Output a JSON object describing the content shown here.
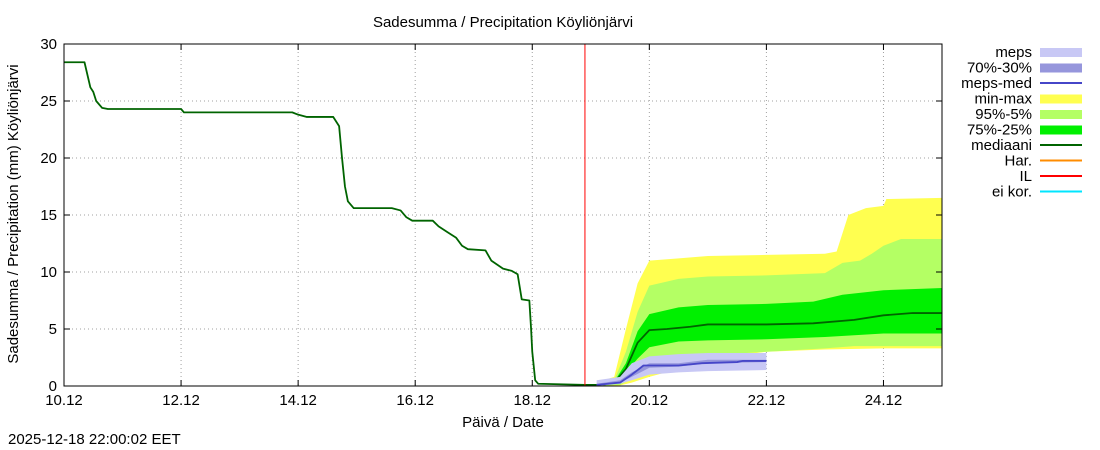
{
  "chart_data": {
    "type": "area",
    "title": "Sadesumma / Precipitation  Köyliönjärvi",
    "xlabel": "Päivä / Date",
    "ylabel": "Sadesumma / Precipitation (mm)  Köyliönjärvi",
    "x_unit": "days since 10.12 00:00",
    "xlim": [
      0,
      15
    ],
    "ylim": [
      0,
      30
    ],
    "x_ticks": [
      {
        "x": 0,
        "label": "10.12"
      },
      {
        "x": 2,
        "label": "12.12"
      },
      {
        "x": 4,
        "label": "14.12"
      },
      {
        "x": 6,
        "label": "16.12"
      },
      {
        "x": 8,
        "label": "18.12"
      },
      {
        "x": 10,
        "label": "20.12"
      },
      {
        "x": 12,
        "label": "22.12"
      },
      {
        "x": 14,
        "label": "24.12"
      }
    ],
    "y_ticks": [
      {
        "y": 0,
        "label": "0"
      },
      {
        "y": 5,
        "label": "5"
      },
      {
        "y": 10,
        "label": "10"
      },
      {
        "y": 15,
        "label": "15"
      },
      {
        "y": 20,
        "label": "20"
      },
      {
        "y": 25,
        "label": "25"
      },
      {
        "y": 30,
        "label": "30"
      }
    ],
    "grid": true,
    "legend_position": "right",
    "now_x": 8.9,
    "legend": [
      {
        "label": "meps",
        "color": "#c8c8f5",
        "kind": "band"
      },
      {
        "label": "70%-30%",
        "color": "#9696dc",
        "kind": "band"
      },
      {
        "label": "meps-med",
        "color": "#4646c8",
        "kind": "line"
      },
      {
        "label": "min-max",
        "color": "#ffff50",
        "kind": "band"
      },
      {
        "label": "95%-5%",
        "color": "#b4ff64",
        "kind": "band"
      },
      {
        "label": "75%-25%",
        "color": "#00f000",
        "kind": "band"
      },
      {
        "label": "mediaani",
        "color": "#006400",
        "kind": "line"
      },
      {
        "label": "Har.",
        "color": "#ff8c00",
        "kind": "line"
      },
      {
        "label": "IL",
        "color": "#ff0000",
        "kind": "line"
      },
      {
        "label": "ei kor.",
        "color": "#00e6ff",
        "kind": "line"
      }
    ],
    "series": [
      {
        "name": "mediaani (history)",
        "color": "#006400",
        "points": [
          [
            0,
            28.4
          ],
          [
            0.35,
            28.4
          ],
          [
            0.45,
            26.2
          ],
          [
            0.5,
            25.8
          ],
          [
            0.55,
            25
          ],
          [
            0.65,
            24.4
          ],
          [
            0.75,
            24.3
          ],
          [
            2.0,
            24.3
          ],
          [
            2.05,
            24.0
          ],
          [
            3.9,
            24.0
          ],
          [
            4.0,
            23.8
          ],
          [
            4.15,
            23.6
          ],
          [
            4.6,
            23.6
          ],
          [
            4.7,
            22.8
          ],
          [
            4.75,
            20
          ],
          [
            4.8,
            17.5
          ],
          [
            4.85,
            16.2
          ],
          [
            4.95,
            15.6
          ],
          [
            5.6,
            15.6
          ],
          [
            5.75,
            15.4
          ],
          [
            5.85,
            14.8
          ],
          [
            5.95,
            14.5
          ],
          [
            6.3,
            14.5
          ],
          [
            6.4,
            14.0
          ],
          [
            6.55,
            13.5
          ],
          [
            6.7,
            13.0
          ],
          [
            6.8,
            12.3
          ],
          [
            6.9,
            12.0
          ],
          [
            7.2,
            11.9
          ],
          [
            7.3,
            11.0
          ],
          [
            7.5,
            10.3
          ],
          [
            7.65,
            10.1
          ],
          [
            7.75,
            9.8
          ],
          [
            7.82,
            7.6
          ],
          [
            7.95,
            7.5
          ],
          [
            7.98,
            5
          ],
          [
            8.0,
            3.0
          ],
          [
            8.05,
            0.5
          ],
          [
            8.1,
            0.2
          ],
          [
            8.9,
            0.1
          ]
        ]
      },
      {
        "name": "min-max",
        "color": "#ffff50",
        "lower": [
          [
            9.1,
            0
          ],
          [
            9.5,
            0.05
          ],
          [
            9.7,
            0.3
          ],
          [
            10,
            0.8
          ],
          [
            10.5,
            1.5
          ],
          [
            11,
            2.2
          ],
          [
            11.5,
            2.7
          ],
          [
            12,
            3.0
          ],
          [
            13,
            3.2
          ],
          [
            14,
            3.3
          ],
          [
            15,
            3.3
          ]
        ],
        "upper": [
          [
            9.1,
            0.3
          ],
          [
            9.4,
            0.8
          ],
          [
            9.6,
            5.0
          ],
          [
            9.8,
            9.0
          ],
          [
            10,
            11.0
          ],
          [
            10.5,
            11.2
          ],
          [
            11,
            11.4
          ],
          [
            12,
            11.5
          ],
          [
            13,
            11.6
          ],
          [
            13.2,
            11.8
          ],
          [
            13.4,
            15.0
          ],
          [
            13.7,
            15.6
          ],
          [
            14.0,
            15.8
          ],
          [
            14.05,
            16.4
          ],
          [
            15,
            16.5
          ]
        ]
      },
      {
        "name": "95%-5%",
        "color": "#b4ff64",
        "lower": [
          [
            9.1,
            0
          ],
          [
            9.5,
            0.1
          ],
          [
            9.7,
            0.6
          ],
          [
            10,
            1.5
          ],
          [
            10.5,
            2.3
          ],
          [
            11,
            2.7
          ],
          [
            12,
            3.0
          ],
          [
            13,
            3.3
          ],
          [
            13.5,
            3.5
          ],
          [
            15,
            3.5
          ]
        ],
        "upper": [
          [
            9.1,
            0.2
          ],
          [
            9.4,
            0.5
          ],
          [
            9.6,
            3.0
          ],
          [
            9.8,
            6.5
          ],
          [
            10,
            8.8
          ],
          [
            10.5,
            9.4
          ],
          [
            11,
            9.6
          ],
          [
            12,
            9.7
          ],
          [
            13,
            9.9
          ],
          [
            13.3,
            10.8
          ],
          [
            13.6,
            11.0
          ],
          [
            13.8,
            11.6
          ],
          [
            14.0,
            12.3
          ],
          [
            14.3,
            12.9
          ],
          [
            15,
            12.9
          ]
        ]
      },
      {
        "name": "75%-25%",
        "color": "#00f000",
        "lower": [
          [
            9.1,
            0
          ],
          [
            9.4,
            0.2
          ],
          [
            9.6,
            1.2
          ],
          [
            9.8,
            2.4
          ],
          [
            10,
            3.4
          ],
          [
            10.5,
            3.9
          ],
          [
            11,
            4.0
          ],
          [
            12,
            4.1
          ],
          [
            12.5,
            4.2
          ],
          [
            13,
            4.3
          ],
          [
            14,
            4.6
          ],
          [
            15,
            4.6
          ]
        ],
        "upper": [
          [
            9.1,
            0.1
          ],
          [
            9.4,
            0.4
          ],
          [
            9.6,
            2.0
          ],
          [
            9.8,
            4.8
          ],
          [
            10,
            6.3
          ],
          [
            10.5,
            6.9
          ],
          [
            11,
            7.1
          ],
          [
            12,
            7.2
          ],
          [
            12.8,
            7.4
          ],
          [
            13.3,
            8.0
          ],
          [
            14,
            8.4
          ],
          [
            15,
            8.6
          ]
        ]
      },
      {
        "name": "mediaani (forecast)",
        "color": "#006400",
        "points": [
          [
            8.9,
            0.1
          ],
          [
            9.2,
            0.1
          ],
          [
            9.4,
            0.3
          ],
          [
            9.6,
            1.5
          ],
          [
            9.8,
            3.8
          ],
          [
            10,
            4.9
          ],
          [
            10.3,
            5.0
          ],
          [
            10.7,
            5.2
          ],
          [
            11,
            5.4
          ],
          [
            12,
            5.4
          ],
          [
            12.8,
            5.5
          ],
          [
            13.5,
            5.8
          ],
          [
            14,
            6.2
          ],
          [
            14.5,
            6.4
          ],
          [
            15,
            6.4
          ]
        ]
      },
      {
        "name": "meps",
        "color": "#c8c8f5",
        "lower": [
          [
            9.1,
            0
          ],
          [
            9.5,
            0.2
          ],
          [
            9.7,
            0.5
          ],
          [
            10,
            1.0
          ],
          [
            10.5,
            1.2
          ],
          [
            11,
            1.3
          ],
          [
            12,
            1.4
          ]
        ],
        "upper": [
          [
            9.1,
            0.5
          ],
          [
            9.5,
            0.8
          ],
          [
            9.7,
            2.0
          ],
          [
            10,
            2.6
          ],
          [
            10.5,
            2.8
          ],
          [
            11,
            2.9
          ],
          [
            12,
            2.9
          ]
        ]
      },
      {
        "name": "70%-30%",
        "color": "#9696dc",
        "lower": [
          [
            9.1,
            0.1
          ],
          [
            9.5,
            0.3
          ],
          [
            9.7,
            0.8
          ],
          [
            10,
            1.6
          ],
          [
            10.5,
            1.7
          ],
          [
            11,
            2.0
          ],
          [
            12,
            2.1
          ]
        ],
        "upper": [
          [
            9.1,
            0.2
          ],
          [
            9.5,
            0.5
          ],
          [
            9.7,
            1.2
          ],
          [
            10,
            2.0
          ],
          [
            10.5,
            2.0
          ],
          [
            11,
            2.3
          ],
          [
            12,
            2.3
          ]
        ]
      },
      {
        "name": "meps-med",
        "color": "#4646c8",
        "points": [
          [
            9.1,
            0.1
          ],
          [
            9.5,
            0.3
          ],
          [
            9.7,
            1.0
          ],
          [
            9.9,
            1.8
          ],
          [
            10.5,
            1.8
          ],
          [
            10.9,
            2.0
          ],
          [
            11.5,
            2.1
          ],
          [
            11.6,
            2.2
          ],
          [
            12,
            2.2
          ]
        ]
      }
    ]
  },
  "footer": {
    "timestamp": "2025-12-18 22:00:02 EET"
  }
}
